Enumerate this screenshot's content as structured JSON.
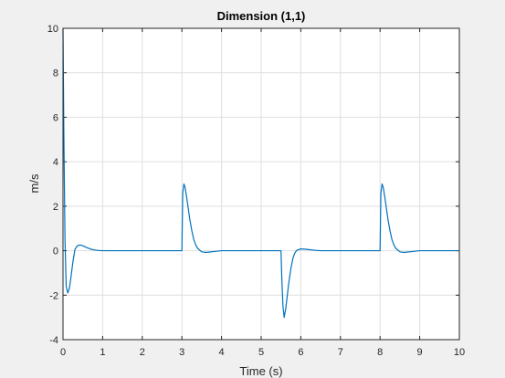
{
  "chart_data": {
    "type": "line",
    "title": "Dimension (1,1)",
    "xlabel": "Time (s)",
    "ylabel": "m/s",
    "xlim": [
      0,
      10
    ],
    "ylim": [
      -4,
      10
    ],
    "xticks": [
      0,
      1,
      2,
      3,
      4,
      5,
      6,
      7,
      8,
      9,
      10
    ],
    "yticks": [
      -4,
      -2,
      0,
      2,
      4,
      6,
      8,
      10
    ],
    "xtick_labels": [
      "0",
      "1",
      "2",
      "3",
      "4",
      "5",
      "6",
      "7",
      "8",
      "9",
      "10"
    ],
    "ytick_labels": [
      "-4",
      "-2",
      "0",
      "2",
      "4",
      "6",
      "8",
      "10"
    ],
    "grid": true,
    "colors": {
      "line": "#0072bd",
      "grid": "#dfdfdf",
      "axes": "#262626",
      "background": "#ffffff",
      "figure": "#f0f0f0"
    },
    "series": [
      {
        "x": [
          0,
          0.02,
          0.05,
          0.08,
          0.12,
          0.16,
          0.2,
          0.25,
          0.3,
          0.35,
          0.4,
          0.45,
          0.5,
          0.6,
          0.7,
          0.8,
          0.9,
          1.0,
          1.2,
          1.5,
          2.0,
          2.5,
          3.0,
          3.02,
          3.05,
          3.08,
          3.12,
          3.16,
          3.2,
          3.25,
          3.3,
          3.35,
          3.4,
          3.5,
          3.6,
          3.7,
          3.8,
          3.9,
          4.0,
          4.5,
          5.0,
          5.5,
          5.52,
          5.55,
          5.58,
          5.62,
          5.66,
          5.7,
          5.75,
          5.8,
          5.85,
          5.9,
          6.0,
          6.1,
          6.2,
          6.3,
          6.4,
          6.5,
          7.0,
          7.5,
          8.0,
          8.02,
          8.05,
          8.08,
          8.12,
          8.16,
          8.2,
          8.25,
          8.3,
          8.35,
          8.4,
          8.5,
          8.6,
          8.7,
          8.8,
          8.9,
          9.0,
          9.5,
          10.0
        ],
        "y": [
          10,
          5.5,
          0.5,
          -1.6,
          -1.9,
          -1.7,
          -1.2,
          -0.5,
          0.05,
          0.2,
          0.25,
          0.25,
          0.22,
          0.14,
          0.07,
          0.03,
          0.01,
          0,
          0,
          0,
          0,
          0,
          0,
          2.6,
          3.0,
          2.85,
          2.4,
          1.9,
          1.4,
          0.9,
          0.5,
          0.25,
          0.1,
          -0.05,
          -0.08,
          -0.06,
          -0.04,
          -0.02,
          0,
          0,
          0,
          0,
          -1.2,
          -2.5,
          -3.0,
          -2.6,
          -2.0,
          -1.4,
          -0.8,
          -0.35,
          -0.1,
          0.02,
          0.08,
          0.07,
          0.05,
          0.03,
          0.01,
          0,
          0,
          0,
          0,
          2.6,
          3.0,
          2.85,
          2.4,
          1.9,
          1.4,
          0.9,
          0.5,
          0.25,
          0.1,
          -0.05,
          -0.08,
          -0.06,
          -0.04,
          -0.02,
          0,
          0,
          0
        ]
      }
    ]
  }
}
